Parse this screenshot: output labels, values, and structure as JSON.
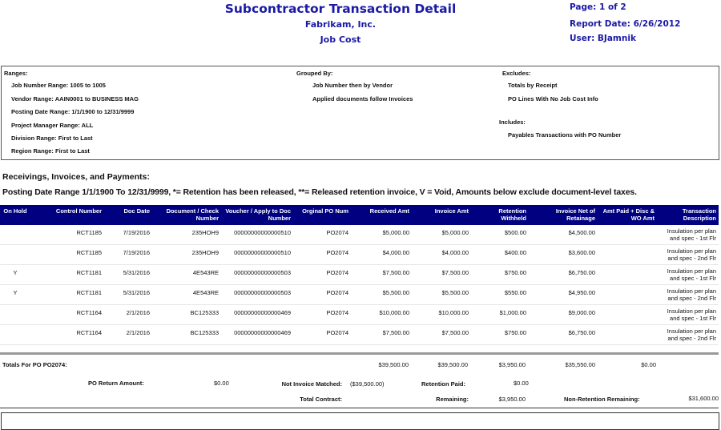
{
  "header": {
    "title": "Subcontractor Transaction Detail",
    "company": "Fabrikam, Inc.",
    "module": "Job Cost",
    "page": "Page: 1 of 2",
    "report_date": "Report Date: 6/26/2012",
    "user": "User: BJamnik"
  },
  "criteria": {
    "ranges_label": "Ranges:",
    "ranges": [
      "Job Number Range: 1005 to 1005",
      "Vendor Range: AAIN0001 to BUSINESS MAG",
      "Posting Date Range: 1/1/1900 to 12/31/9999",
      "Project Manager Range: ALL",
      "Division Range: First to Last",
      "Region Range: First to Last"
    ],
    "grouped_label": "Grouped By:",
    "grouped": [
      "Job Number then by Vendor",
      "Applied documents follow Invoices"
    ],
    "excludes_label": "Excludes:",
    "excludes": [
      "Totals by Receipt",
      "PO Lines With No Job Cost Info"
    ],
    "includes_label": "Includes:",
    "includes": [
      "Payables Transactions with PO Number"
    ]
  },
  "section": {
    "heading": "Receivings, Invoices, and Payments:",
    "note": "Posting Date Range 1/1/1900 To 12/31/9999, *= Retention has been released, **= Released retention invoice, V = Void, Amounts below exclude document-level taxes."
  },
  "table": {
    "header_color": "#000080",
    "columns": [
      "On Hold",
      "Control Number",
      "Doc Date",
      "Document / Check Number",
      "Voucher / Apply to Doc Number",
      "Orginal PO Num",
      "Received Amt",
      "Invoice Amt",
      "Retention Withheld",
      "Invoice Net of Retainage",
      "Amt Paid + Disc & WO Amt",
      "Transaction Description"
    ],
    "rows": [
      [
        "",
        "RCT1185",
        "7/19/2016",
        "235HOH9",
        "00000000000000510",
        "PO2074",
        "$5,000.00",
        "$5,000.00",
        "$500.00",
        "$4,500.00",
        "",
        "Insulation per plan and spec - 1st Flr"
      ],
      [
        "",
        "RCT1185",
        "7/19/2016",
        "235HOH9",
        "00000000000000510",
        "PO2074",
        "$4,000.00",
        "$4,000.00",
        "$400.00",
        "$3,600.00",
        "",
        "Insulation per plan and spec - 2nd Flr"
      ],
      [
        "Y",
        "RCT1181",
        "5/31/2016",
        "4E543RE",
        "00000000000000503",
        "PO2074",
        "$7,500.00",
        "$7,500.00",
        "$750.00",
        "$6,750.00",
        "",
        "Insulation per plan and spec - 1st Flr"
      ],
      [
        "Y",
        "RCT1181",
        "5/31/2016",
        "4E543RE",
        "00000000000000503",
        "PO2074",
        "$5,500.00",
        "$5,500.00",
        "$550.00",
        "$4,950.00",
        "",
        "Insulation per plan and spec - 2nd Flr"
      ],
      [
        "",
        "RCT1164",
        "2/1/2016",
        "BC125333",
        "00000000000000469",
        "PO2074",
        "$10,000.00",
        "$10,000.00",
        "$1,000.00",
        "$9,000.00",
        "",
        "Insulation per plan and spec - 1st Flr"
      ],
      [
        "",
        "RCT1164",
        "2/1/2016",
        "BC125333",
        "00000000000000469",
        "PO2074",
        "$7,500.00",
        "$7,500.00",
        "$750.00",
        "$6,750.00",
        "",
        "Insulation per plan and spec - 2nd Flr"
      ]
    ]
  },
  "totals": {
    "label": "Totals For PO PO2074:",
    "received": "$39,500.00",
    "invoice": "$39,500.00",
    "retention": "$3,950.00",
    "net": "$35,550.00",
    "paid": "$0.00",
    "po_return_label": "PO Return Amount:",
    "po_return": "$0.00",
    "not_matched_label": "Not Invoice Matched:",
    "not_matched": "($39,500.00)",
    "retention_paid_label": "Retention Paid:",
    "retention_paid": "$0.00",
    "total_contract_label": "Total Contract:",
    "remaining_label": "Remaining:",
    "remaining": "$3,950.00",
    "non_ret_label": "Non-Retention Remaining:",
    "non_ret": "$31,600.00"
  }
}
